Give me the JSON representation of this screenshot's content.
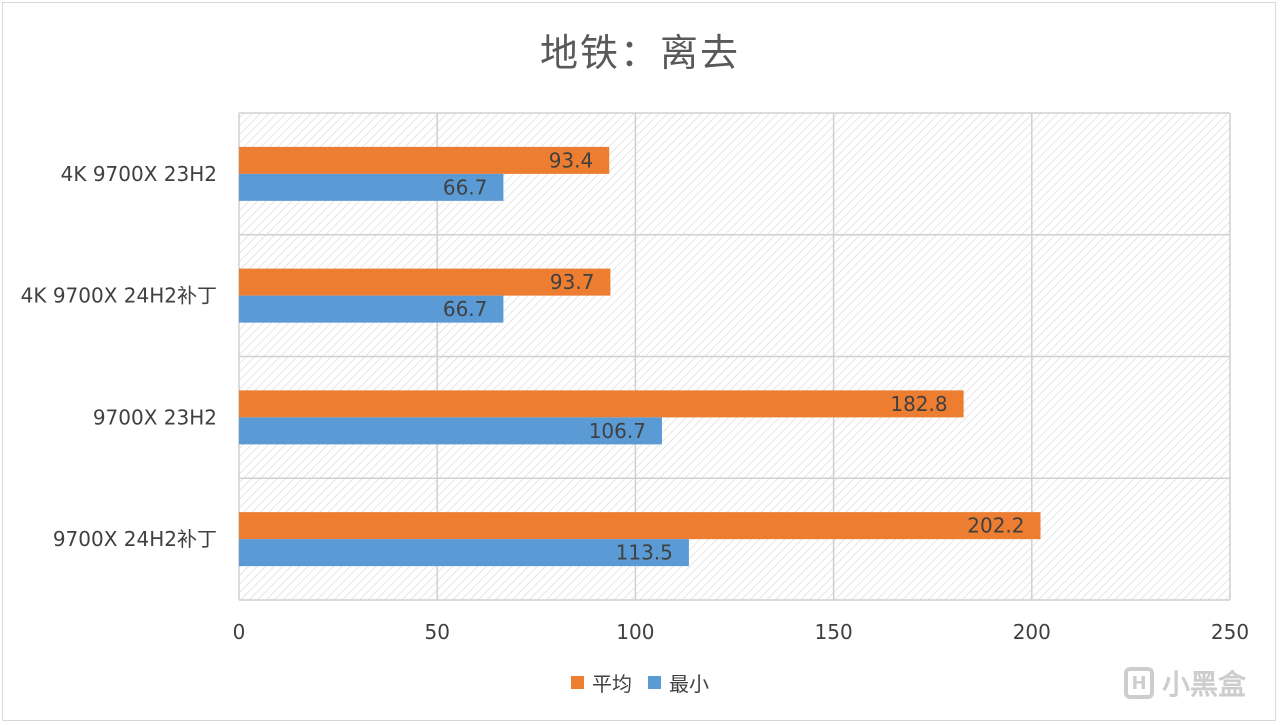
{
  "chart_data": {
    "type": "bar",
    "orientation": "horizontal",
    "title": "地铁：离去",
    "categories": [
      "4K 9700X 23H2",
      "4K 9700X 24H2补丁",
      "9700X 23H2",
      "9700X 24H2补丁"
    ],
    "series": [
      {
        "name": "平均",
        "color": "#ED7D31",
        "values": [
          93.4,
          93.7,
          182.8,
          202.2
        ]
      },
      {
        "name": "最小",
        "color": "#5B9BD5",
        "values": [
          66.7,
          66.7,
          106.7,
          113.5
        ]
      }
    ],
    "xlim": [
      0,
      250
    ],
    "xticks": [
      0,
      50,
      100,
      150,
      200,
      250
    ],
    "grid": true,
    "legend": "bottom"
  },
  "watermark": {
    "text": "小黑盒",
    "icon": "box-logo-icon"
  }
}
